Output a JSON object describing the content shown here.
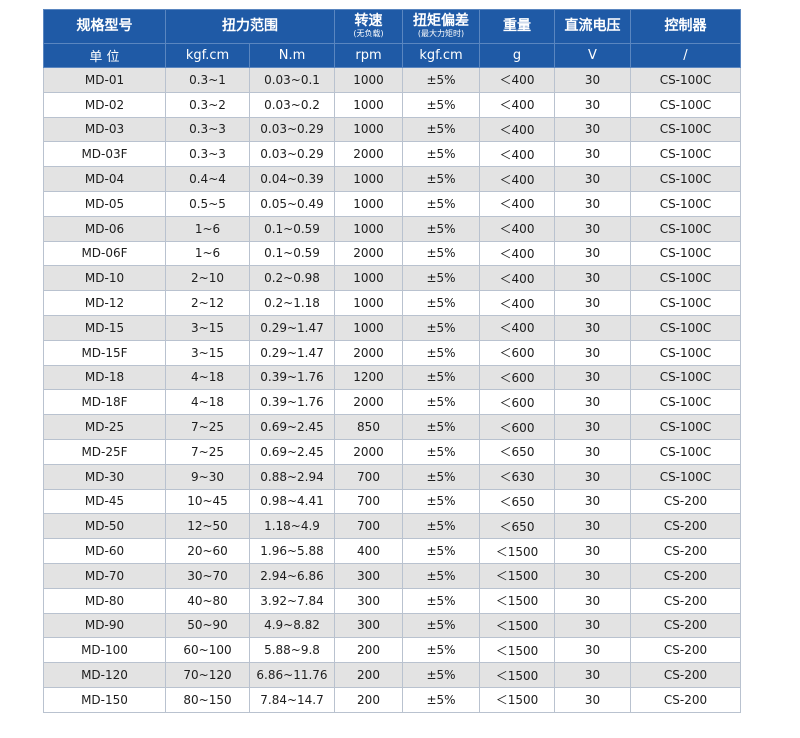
{
  "header": {
    "col_model": "规格型号",
    "col_torque": "扭力范围",
    "col_speed": "转速",
    "col_speed_note": "(无负载)",
    "col_deviation": "扭矩偏差",
    "col_deviation_note": "(最大力矩时)",
    "col_weight": "重量",
    "col_voltage": "直流电压",
    "col_controller": "控制器"
  },
  "units": {
    "label": "单 位",
    "kgf": "kgf.cm",
    "nm": "N.m",
    "speed": "rpm",
    "deviation": "kgf.cm",
    "weight": "g",
    "voltage": "V",
    "controller": "/"
  },
  "rows": [
    {
      "model": "MD-01",
      "kgf": "0.3~1",
      "nm": "0.03~0.1",
      "rpm": "1000",
      "dev": "±5%",
      "weight": "＜400",
      "volt": "30",
      "ctrl": "CS-100C"
    },
    {
      "model": "MD-02",
      "kgf": "0.3~2",
      "nm": "0.03~0.2",
      "rpm": "1000",
      "dev": "±5%",
      "weight": "＜400",
      "volt": "30",
      "ctrl": "CS-100C"
    },
    {
      "model": "MD-03",
      "kgf": "0.3~3",
      "nm": "0.03~0.29",
      "rpm": "1000",
      "dev": "±5%",
      "weight": "＜400",
      "volt": "30",
      "ctrl": "CS-100C"
    },
    {
      "model": "MD-03F",
      "kgf": "0.3~3",
      "nm": "0.03~0.29",
      "rpm": "2000",
      "dev": "±5%",
      "weight": "＜400",
      "volt": "30",
      "ctrl": "CS-100C"
    },
    {
      "model": "MD-04",
      "kgf": "0.4~4",
      "nm": "0.04~0.39",
      "rpm": "1000",
      "dev": "±5%",
      "weight": "＜400",
      "volt": "30",
      "ctrl": "CS-100C"
    },
    {
      "model": "MD-05",
      "kgf": "0.5~5",
      "nm": "0.05~0.49",
      "rpm": "1000",
      "dev": "±5%",
      "weight": "＜400",
      "volt": "30",
      "ctrl": "CS-100C"
    },
    {
      "model": "MD-06",
      "kgf": "1~6",
      "nm": "0.1~0.59",
      "rpm": "1000",
      "dev": "±5%",
      "weight": "＜400",
      "volt": "30",
      "ctrl": "CS-100C"
    },
    {
      "model": "MD-06F",
      "kgf": "1~6",
      "nm": "0.1~0.59",
      "rpm": "2000",
      "dev": "±5%",
      "weight": "＜400",
      "volt": "30",
      "ctrl": "CS-100C"
    },
    {
      "model": "MD-10",
      "kgf": "2~10",
      "nm": "0.2~0.98",
      "rpm": "1000",
      "dev": "±5%",
      "weight": "＜400",
      "volt": "30",
      "ctrl": "CS-100C"
    },
    {
      "model": "MD-12",
      "kgf": "2~12",
      "nm": "0.2~1.18",
      "rpm": "1000",
      "dev": "±5%",
      "weight": "＜400",
      "volt": "30",
      "ctrl": "CS-100C"
    },
    {
      "model": "MD-15",
      "kgf": "3~15",
      "nm": "0.29~1.47",
      "rpm": "1000",
      "dev": "±5%",
      "weight": "＜400",
      "volt": "30",
      "ctrl": "CS-100C"
    },
    {
      "model": "MD-15F",
      "kgf": "3~15",
      "nm": "0.29~1.47",
      "rpm": "2000",
      "dev": "±5%",
      "weight": "＜600",
      "volt": "30",
      "ctrl": "CS-100C"
    },
    {
      "model": "MD-18",
      "kgf": "4~18",
      "nm": "0.39~1.76",
      "rpm": "1200",
      "dev": "±5%",
      "weight": "＜600",
      "volt": "30",
      "ctrl": "CS-100C"
    },
    {
      "model": "MD-18F",
      "kgf": "4~18",
      "nm": "0.39~1.76",
      "rpm": "2000",
      "dev": "±5%",
      "weight": "＜600",
      "volt": "30",
      "ctrl": "CS-100C"
    },
    {
      "model": "MD-25",
      "kgf": "7~25",
      "nm": "0.69~2.45",
      "rpm": "850",
      "dev": "±5%",
      "weight": "＜600",
      "volt": "30",
      "ctrl": "CS-100C"
    },
    {
      "model": "MD-25F",
      "kgf": "7~25",
      "nm": "0.69~2.45",
      "rpm": "2000",
      "dev": "±5%",
      "weight": "＜650",
      "volt": "30",
      "ctrl": "CS-100C"
    },
    {
      "model": "MD-30",
      "kgf": "9~30",
      "nm": "0.88~2.94",
      "rpm": "700",
      "dev": "±5%",
      "weight": "＜630",
      "volt": "30",
      "ctrl": "CS-100C"
    },
    {
      "model": "MD-45",
      "kgf": "10~45",
      "nm": "0.98~4.41",
      "rpm": "700",
      "dev": "±5%",
      "weight": "＜650",
      "volt": "30",
      "ctrl": "CS-200"
    },
    {
      "model": "MD-50",
      "kgf": "12~50",
      "nm": "1.18~4.9",
      "rpm": "700",
      "dev": "±5%",
      "weight": "＜650",
      "volt": "30",
      "ctrl": "CS-200"
    },
    {
      "model": "MD-60",
      "kgf": "20~60",
      "nm": "1.96~5.88",
      "rpm": "400",
      "dev": "±5%",
      "weight": "＜1500",
      "volt": "30",
      "ctrl": "CS-200"
    },
    {
      "model": "MD-70",
      "kgf": "30~70",
      "nm": "2.94~6.86",
      "rpm": "300",
      "dev": "±5%",
      "weight": "＜1500",
      "volt": "30",
      "ctrl": "CS-200"
    },
    {
      "model": "MD-80",
      "kgf": "40~80",
      "nm": "3.92~7.84",
      "rpm": "300",
      "dev": "±5%",
      "weight": "＜1500",
      "volt": "30",
      "ctrl": "CS-200"
    },
    {
      "model": "MD-90",
      "kgf": "50~90",
      "nm": "4.9~8.82",
      "rpm": "300",
      "dev": "±5%",
      "weight": "＜1500",
      "volt": "30",
      "ctrl": "CS-200"
    },
    {
      "model": "MD-100",
      "kgf": "60~100",
      "nm": "5.88~9.8",
      "rpm": "200",
      "dev": "±5%",
      "weight": "＜1500",
      "volt": "30",
      "ctrl": "CS-200"
    },
    {
      "model": "MD-120",
      "kgf": "70~120",
      "nm": "6.86~11.76",
      "rpm": "200",
      "dev": "±5%",
      "weight": "＜1500",
      "volt": "30",
      "ctrl": "CS-200"
    },
    {
      "model": "MD-150",
      "kgf": "80~150",
      "nm": "7.84~14.7",
      "rpm": "200",
      "dev": "±5%",
      "weight": "＜1500",
      "volt": "30",
      "ctrl": "CS-200"
    }
  ],
  "colors": {
    "header_bg": "#1f5aa6",
    "row_shade": "#e3e3e3",
    "border": "#b9c2cf"
  }
}
